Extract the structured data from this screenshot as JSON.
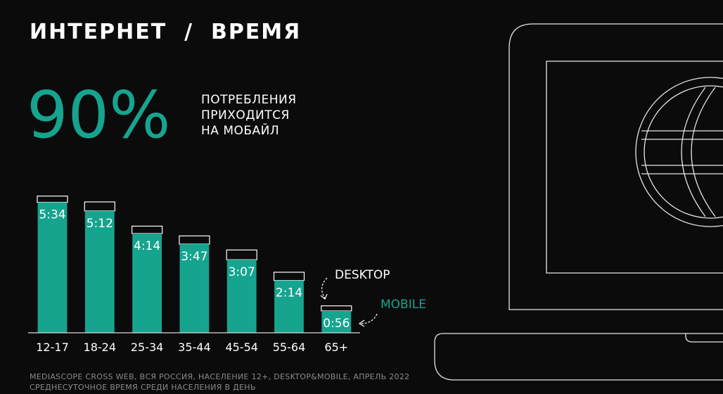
{
  "title": "ИНТЕРНЕТ  /  ВРЕМЯ",
  "highlight": {
    "value": "90%",
    "caption_lines": [
      "ПОТРЕБЛЕНИЯ",
      "ПРИХОДИТСЯ",
      "НА МОБАЙЛ"
    ]
  },
  "footnote": {
    "line1": "MEDIASCOPE CROSS WEB, ВСЯ РОССИЯ, НАСЕЛЕНИЕ 12+, DESKTOP&MOBILE, АПРЕЛЬ 2022",
    "line2": "СРЕДНЕСУТОЧНОЕ ВРЕМЯ СРЕДИ НАСЕЛЕНИЯ В ДЕНЬ"
  },
  "colors": {
    "mobile": "#16a48f",
    "desktop_outline": "#ffffff",
    "background": "#0b0b0c"
  },
  "illustration": "laptop-globe-outline",
  "chart_data": {
    "type": "bar",
    "stacked": true,
    "categories": [
      "12-17",
      "18-24",
      "25-34",
      "35-44",
      "45-54",
      "55-64",
      "65+"
    ],
    "series": [
      {
        "name": "MOBILE",
        "values": [
          334,
          312,
          254,
          227,
          187,
          134,
          56
        ]
      },
      {
        "name": "DESKTOP",
        "values": [
          16,
          23,
          19,
          21,
          25,
          21,
          13
        ]
      }
    ],
    "data_labels": [
      "5:34",
      "5:12",
      "4:14",
      "3:47",
      "3:07",
      "2:14",
      "0:56"
    ],
    "unit": "minutes",
    "legend": {
      "desktop": "DESKTOP",
      "mobile": "MOBILE"
    },
    "ylim": [
      0,
      380
    ],
    "grid": false
  }
}
